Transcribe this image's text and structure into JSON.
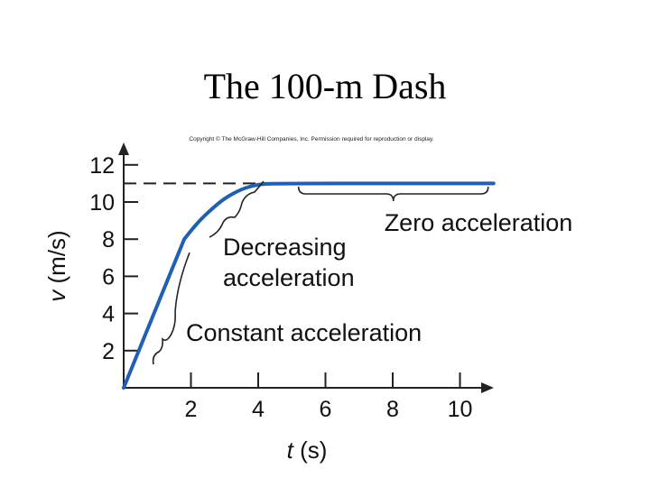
{
  "slide": {
    "title": "The 100-m Dash"
  },
  "copyright": "Copyright © The McGraw-Hill Companies, Inc. Permission required for reproduction or display.",
  "chart_data": {
    "type": "line",
    "title": "The 100-m Dash",
    "xlabel_var": "t",
    "xlabel_unit": "(s)",
    "ylabel_var": "v",
    "ylabel_unit": "(m/s)",
    "xlim": [
      0,
      11
    ],
    "ylim": [
      0,
      12.5
    ],
    "x_ticks": [
      2,
      4,
      6,
      8,
      10
    ],
    "y_ticks": [
      2,
      4,
      6,
      8,
      10,
      12
    ],
    "grid": false,
    "series": [
      {
        "color": "#1f5fb4",
        "points": [
          [
            0,
            0
          ],
          [
            1.8,
            8
          ],
          [
            2.2,
            8.9
          ],
          [
            2.6,
            9.6
          ],
          [
            3.0,
            10.2
          ],
          [
            3.5,
            10.7
          ],
          [
            4.0,
            10.95
          ],
          [
            4.5,
            11.0
          ],
          [
            11.0,
            11.0
          ]
        ]
      }
    ],
    "reference_line": {
      "y": 11,
      "from_x": 0,
      "to_x": 4.2,
      "style": "dashed"
    },
    "annotations": [
      {
        "lines": [
          "Zero acceleration"
        ],
        "brace_x": [
          5.2,
          11.0
        ],
        "brace_y": 11
      },
      {
        "lines": [
          "Decreasing",
          "acceleration"
        ],
        "brace_x": [
          2.6,
          4.0
        ],
        "brace_y": 10.3
      },
      {
        "lines": [
          "Constant acceleration"
        ],
        "brace_x": [
          1.0,
          1.8
        ],
        "brace_y": 5
      }
    ]
  }
}
